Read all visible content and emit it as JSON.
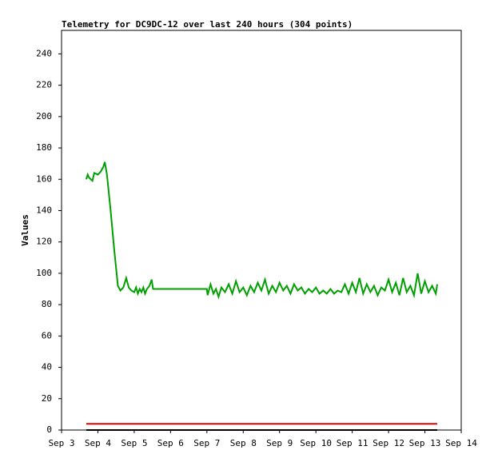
{
  "chart_data": {
    "type": "line",
    "title": "Telemetry for DC9DC-12 over last 240 hours (304 points)",
    "y_label": "Values",
    "xlim": [
      3,
      14
    ],
    "xticks": [
      {
        "value": 3,
        "label": "Sep 3"
      },
      {
        "value": 4,
        "label": "Sep 4"
      },
      {
        "value": 5,
        "label": "Sep 5"
      },
      {
        "value": 6,
        "label": "Sep 6"
      },
      {
        "value": 7,
        "label": "Sep 7"
      },
      {
        "value": 8,
        "label": "Sep 8"
      },
      {
        "value": 9,
        "label": "Sep 9"
      },
      {
        "value": 10,
        "label": "Sep 10"
      },
      {
        "value": 11,
        "label": "Sep 11"
      },
      {
        "value": 12,
        "label": "Sep 12"
      },
      {
        "value": 13,
        "label": "Sep 13"
      },
      {
        "value": 14,
        "label": "Sep 14"
      }
    ],
    "ylim": [
      0,
      255
    ],
    "yticks": [
      0,
      20,
      40,
      60,
      80,
      100,
      120,
      140,
      160,
      180,
      200,
      220,
      240
    ],
    "series": [
      {
        "color": "#00a000",
        "x": [
          3.68,
          3.72,
          3.76,
          3.85,
          3.9,
          4.0,
          4.08,
          4.15,
          4.19,
          4.25,
          4.35,
          4.45,
          4.55,
          4.62,
          4.7,
          4.78,
          4.85,
          4.92,
          5.0,
          5.05,
          5.1,
          5.15,
          5.2,
          5.25,
          5.3,
          5.35,
          5.42,
          5.48,
          5.52,
          7.0,
          7.02,
          7.1,
          7.18,
          7.25,
          7.32,
          7.4,
          7.5,
          7.6,
          7.7,
          7.8,
          7.9,
          8.0,
          8.1,
          8.2,
          8.3,
          8.4,
          8.5,
          8.6,
          8.7,
          8.8,
          8.9,
          9.0,
          9.1,
          9.2,
          9.3,
          9.4,
          9.5,
          9.6,
          9.7,
          9.8,
          9.9,
          10.0,
          10.1,
          10.2,
          10.3,
          10.4,
          10.5,
          10.6,
          10.7,
          10.8,
          10.9,
          11.0,
          11.1,
          11.2,
          11.3,
          11.4,
          11.5,
          11.6,
          11.7,
          11.8,
          11.9,
          12.0,
          12.1,
          12.2,
          12.3,
          12.4,
          12.5,
          12.6,
          12.7,
          12.8,
          12.9,
          13.0,
          13.1,
          13.2,
          13.3,
          13.34
        ],
        "values": [
          160,
          163,
          161,
          159,
          164,
          163,
          165,
          168,
          171,
          163,
          140,
          115,
          92,
          89,
          91,
          97,
          91,
          89,
          88,
          91,
          87,
          90,
          88,
          91,
          87,
          90,
          92,
          96,
          90,
          90,
          86,
          93,
          87,
          90,
          85,
          91,
          88,
          93,
          87,
          95,
          88,
          91,
          86,
          92,
          88,
          94,
          89,
          96,
          87,
          92,
          88,
          94,
          89,
          92,
          87,
          93,
          89,
          91,
          87,
          90,
          88,
          91,
          87,
          89,
          87,
          90,
          87,
          89,
          88,
          93,
          87,
          94,
          88,
          97,
          87,
          93,
          88,
          92,
          86,
          91,
          89,
          96,
          88,
          94,
          86,
          97,
          88,
          92,
          86,
          100,
          87,
          95,
          88,
          92,
          87,
          93
        ]
      },
      {
        "color": "#e00000",
        "x": [
          3.68,
          13.34
        ],
        "values": [
          4,
          4
        ]
      },
      {
        "color": "#000000",
        "x": [
          3.68,
          13.34
        ],
        "values": [
          0,
          0
        ]
      }
    ]
  }
}
